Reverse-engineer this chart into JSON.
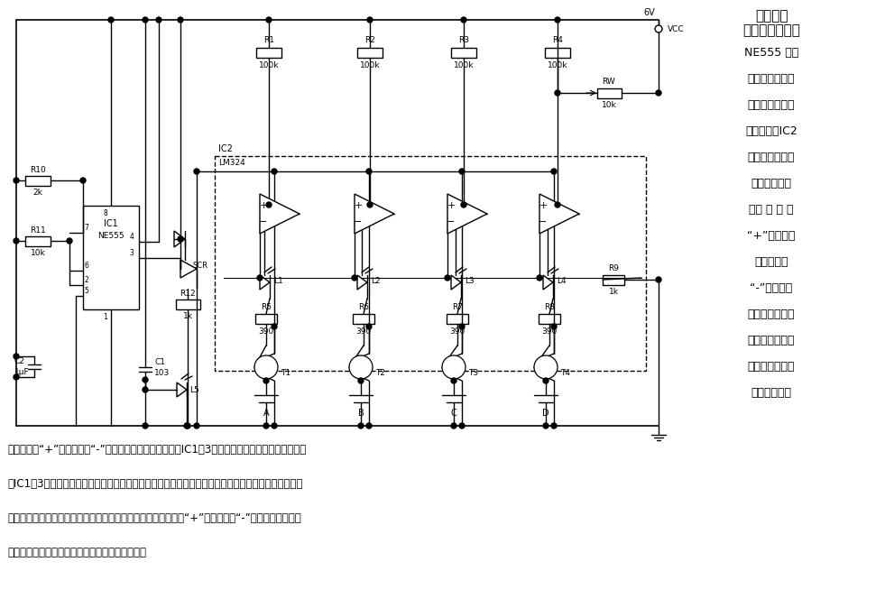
{
  "title_text": "并联式全\n自动脉冲充电器",
  "description_lines": [
    "NE555 构成",
    "多谐振荡器，其",
    "输出端控制可控",
    "硫的通断；IC2",
    "为电压比较器。",
    "当不接人电池",
    "时， 比 较 器",
    "“+”端通过上",
    "拉电阵高于",
    "“-”端电平，",
    "因此比较器输出",
    "高电平，发光管",
    "不亮。当接人电",
    "压不足的电池"
  ],
  "bottom_lines": [
    "时，比较器“+”端电平低于“-”端，输出低电平，晶体管在IC1的3脚为高电平时导通，对电池充电。",
    "在IC1的3脚为低电平时截止，电池以小电流通过集电极放电，发光管也随之周期性发光（因放电电流较",
    "小，不足以使发光管在放电期间发光），当电池充满时，比较器“+”端电位高于“-”端，输出高电平，",
    "三极管截止，发光管长时间不亮，示意充电完成。"
  ],
  "bg_color": "#ffffff",
  "line_color": "#000000",
  "text_color": "#000000"
}
